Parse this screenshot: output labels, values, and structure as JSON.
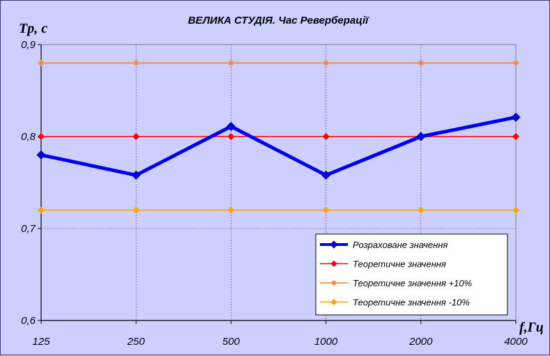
{
  "chart_data": {
    "type": "line",
    "title": "ВЕЛИКА СТУДІЯ. Час Реверберації",
    "ylabel": "Tр, с",
    "xlabel": "f,Гц",
    "categories": [
      "125",
      "250",
      "500",
      "1000",
      "2000",
      "4000"
    ],
    "ylim": [
      0.6,
      0.9
    ],
    "yticks": [
      "0,6",
      "0,7",
      "0,8",
      "0,9"
    ],
    "grid": true,
    "legend_position": "bottom-right",
    "series": [
      {
        "name": "Розрахoване значення",
        "values": [
          0.78,
          0.758,
          0.811,
          0.758,
          0.8,
          0.821
        ],
        "color": "#0000ee",
        "marker": "diamond"
      },
      {
        "name": "Теоретичне значення",
        "values": [
          0.8,
          0.8,
          0.8,
          0.8,
          0.8,
          0.8
        ],
        "color": "#ff0000",
        "marker": "diamond"
      },
      {
        "name": "Теоретичне значення +10%",
        "values": [
          0.88,
          0.88,
          0.88,
          0.88,
          0.88,
          0.88
        ],
        "color": "#ff7f27",
        "marker": "star"
      },
      {
        "name": "Теоретичне значення -10%",
        "values": [
          0.72,
          0.72,
          0.72,
          0.72,
          0.72,
          0.72
        ],
        "color": "#ffa500",
        "marker": "diamond"
      }
    ]
  }
}
